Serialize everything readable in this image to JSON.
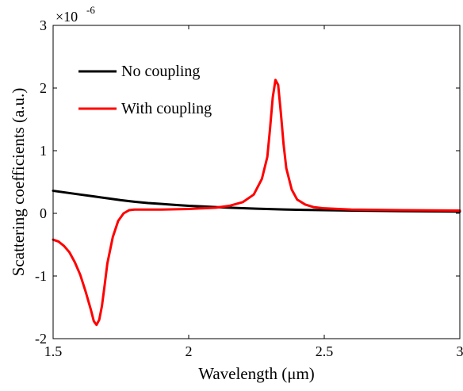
{
  "chart_data": {
    "type": "line",
    "xlabel": "Wavelength (μm)",
    "ylabel": "Scattering coefficients (a.u.)",
    "y_multiplier": {
      "base": "×10",
      "exponent": "-6"
    },
    "xlim": [
      1.5,
      3
    ],
    "ylim": [
      -2,
      3
    ],
    "xticks": [
      1.5,
      2,
      2.5,
      3
    ],
    "xtick_labels": [
      "1.5",
      "2",
      "2.5",
      "3"
    ],
    "yticks": [
      -2,
      -1,
      0,
      1,
      2,
      3
    ],
    "ytick_labels": [
      "-2",
      "-1",
      "0",
      "1",
      "2",
      "3"
    ],
    "grid": false,
    "legend_position": "top-left",
    "series": [
      {
        "name": "No coupling",
        "color": "#000000",
        "x": [
          1.5,
          1.55,
          1.6,
          1.65,
          1.7,
          1.75,
          1.8,
          1.85,
          1.9,
          1.95,
          2.0,
          2.05,
          2.1,
          2.15,
          2.2,
          2.25,
          2.3,
          2.35,
          2.4,
          2.45,
          2.5,
          2.6,
          2.7,
          2.8,
          2.9,
          3.0
        ],
        "y": [
          0.36,
          0.33,
          0.3,
          0.27,
          0.24,
          0.21,
          0.185,
          0.165,
          0.15,
          0.135,
          0.12,
          0.11,
          0.1,
          0.09,
          0.082,
          0.075,
          0.068,
          0.062,
          0.057,
          0.053,
          0.05,
          0.044,
          0.039,
          0.035,
          0.031,
          0.028
        ]
      },
      {
        "name": "With coupling",
        "color": "#ff0000",
        "x": [
          1.5,
          1.52,
          1.54,
          1.56,
          1.58,
          1.6,
          1.62,
          1.64,
          1.65,
          1.66,
          1.67,
          1.68,
          1.69,
          1.7,
          1.72,
          1.74,
          1.76,
          1.78,
          1.8,
          1.85,
          1.9,
          2.0,
          2.1,
          2.15,
          2.2,
          2.24,
          2.27,
          2.29,
          2.3,
          2.31,
          2.32,
          2.33,
          2.34,
          2.35,
          2.36,
          2.38,
          2.4,
          2.43,
          2.46,
          2.5,
          2.6,
          2.7,
          2.8,
          2.9,
          3.0
        ],
        "y": [
          -0.42,
          -0.45,
          -0.52,
          -0.62,
          -0.78,
          -0.98,
          -1.25,
          -1.55,
          -1.72,
          -1.78,
          -1.7,
          -1.48,
          -1.15,
          -0.8,
          -0.38,
          -0.12,
          0.0,
          0.05,
          0.06,
          0.06,
          0.06,
          0.07,
          0.09,
          0.12,
          0.18,
          0.3,
          0.55,
          0.9,
          1.35,
          1.85,
          2.13,
          2.05,
          1.6,
          1.1,
          0.72,
          0.38,
          0.22,
          0.14,
          0.1,
          0.08,
          0.06,
          0.055,
          0.05,
          0.048,
          0.045
        ]
      }
    ]
  }
}
